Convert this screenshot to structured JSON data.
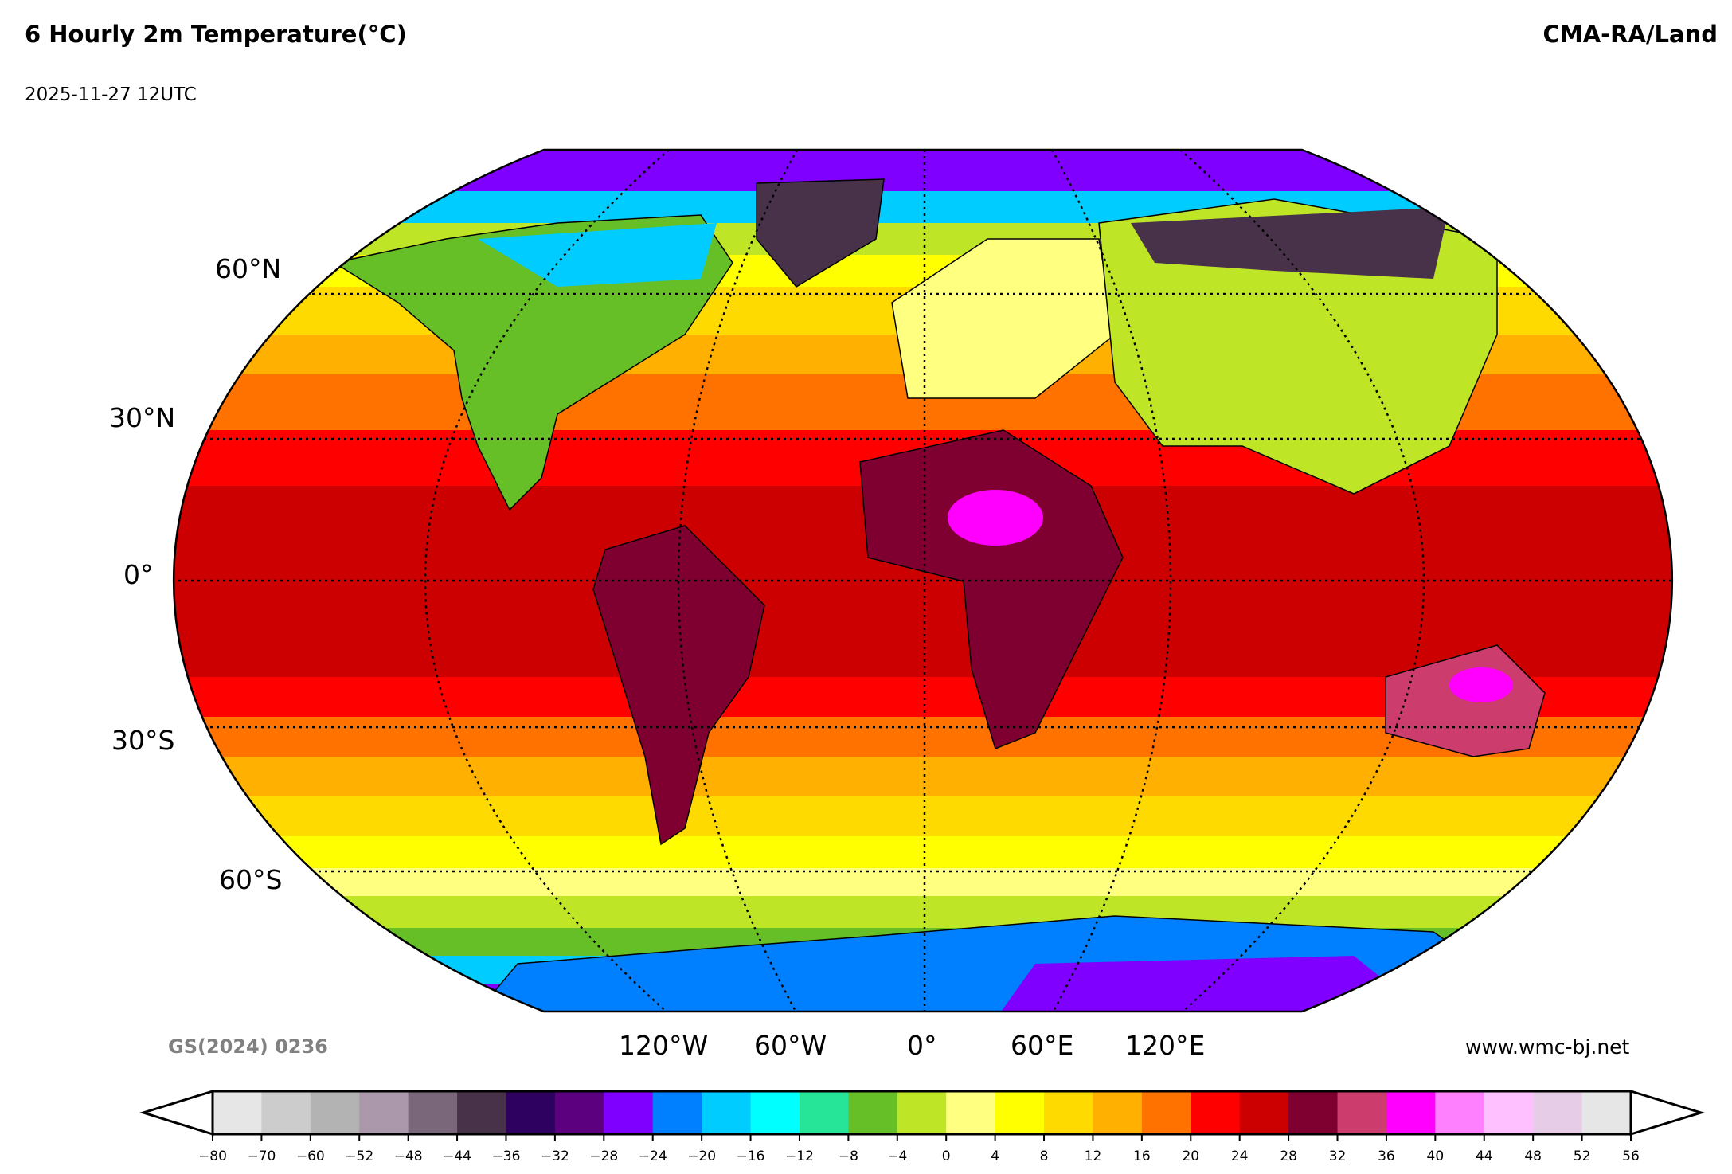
{
  "header": {
    "title": "6 Hourly 2m Temperature(°C)",
    "source": "CMA-RA/Land",
    "valid_time": "2025-11-27 12UTC"
  },
  "footer": {
    "review_number": "GS(2024) 0236",
    "website": "www.wmc-bj.net"
  },
  "map": {
    "projection": "Robinson",
    "variable": "2m temperature",
    "lat_labels": [
      "60°N",
      "30°N",
      "0°",
      "30°S",
      "60°S"
    ],
    "lon_labels": [
      "120°W",
      "60°W",
      "0°",
      "60°E",
      "120°E"
    ],
    "graticule": "dotted",
    "coastlines": true,
    "country_borders": true
  },
  "colorbar": {
    "ticks": [
      "−80",
      "−70",
      "−60",
      "−52",
      "−48",
      "−44",
      "−36",
      "−32",
      "−28",
      "−24",
      "−20",
      "−16",
      "−12",
      "−8",
      "−4",
      "0",
      "4",
      "8",
      "12",
      "16",
      "20",
      "24",
      "28",
      "32",
      "36",
      "40",
      "44",
      "48",
      "52",
      "56"
    ],
    "colors": [
      "#e6e6e6",
      "#cccccc",
      "#b3b3b3",
      "#ab98ab",
      "#7a687a",
      "#48324a",
      "#2e005f",
      "#5c0080",
      "#8000ff",
      "#0080ff",
      "#00ccff",
      "#00ffff",
      "#26e599",
      "#66bf26",
      "#bfe626",
      "#ffff80",
      "#ffff00",
      "#ffda00",
      "#ffb000",
      "#ff7200",
      "#ff0000",
      "#cc0000",
      "#7f0030",
      "#cc3c6c",
      "#ff00ff",
      "#ff80ff",
      "#ffc0ff",
      "#e6cce6",
      "#e6e6e6"
    ],
    "extend": "both"
  }
}
